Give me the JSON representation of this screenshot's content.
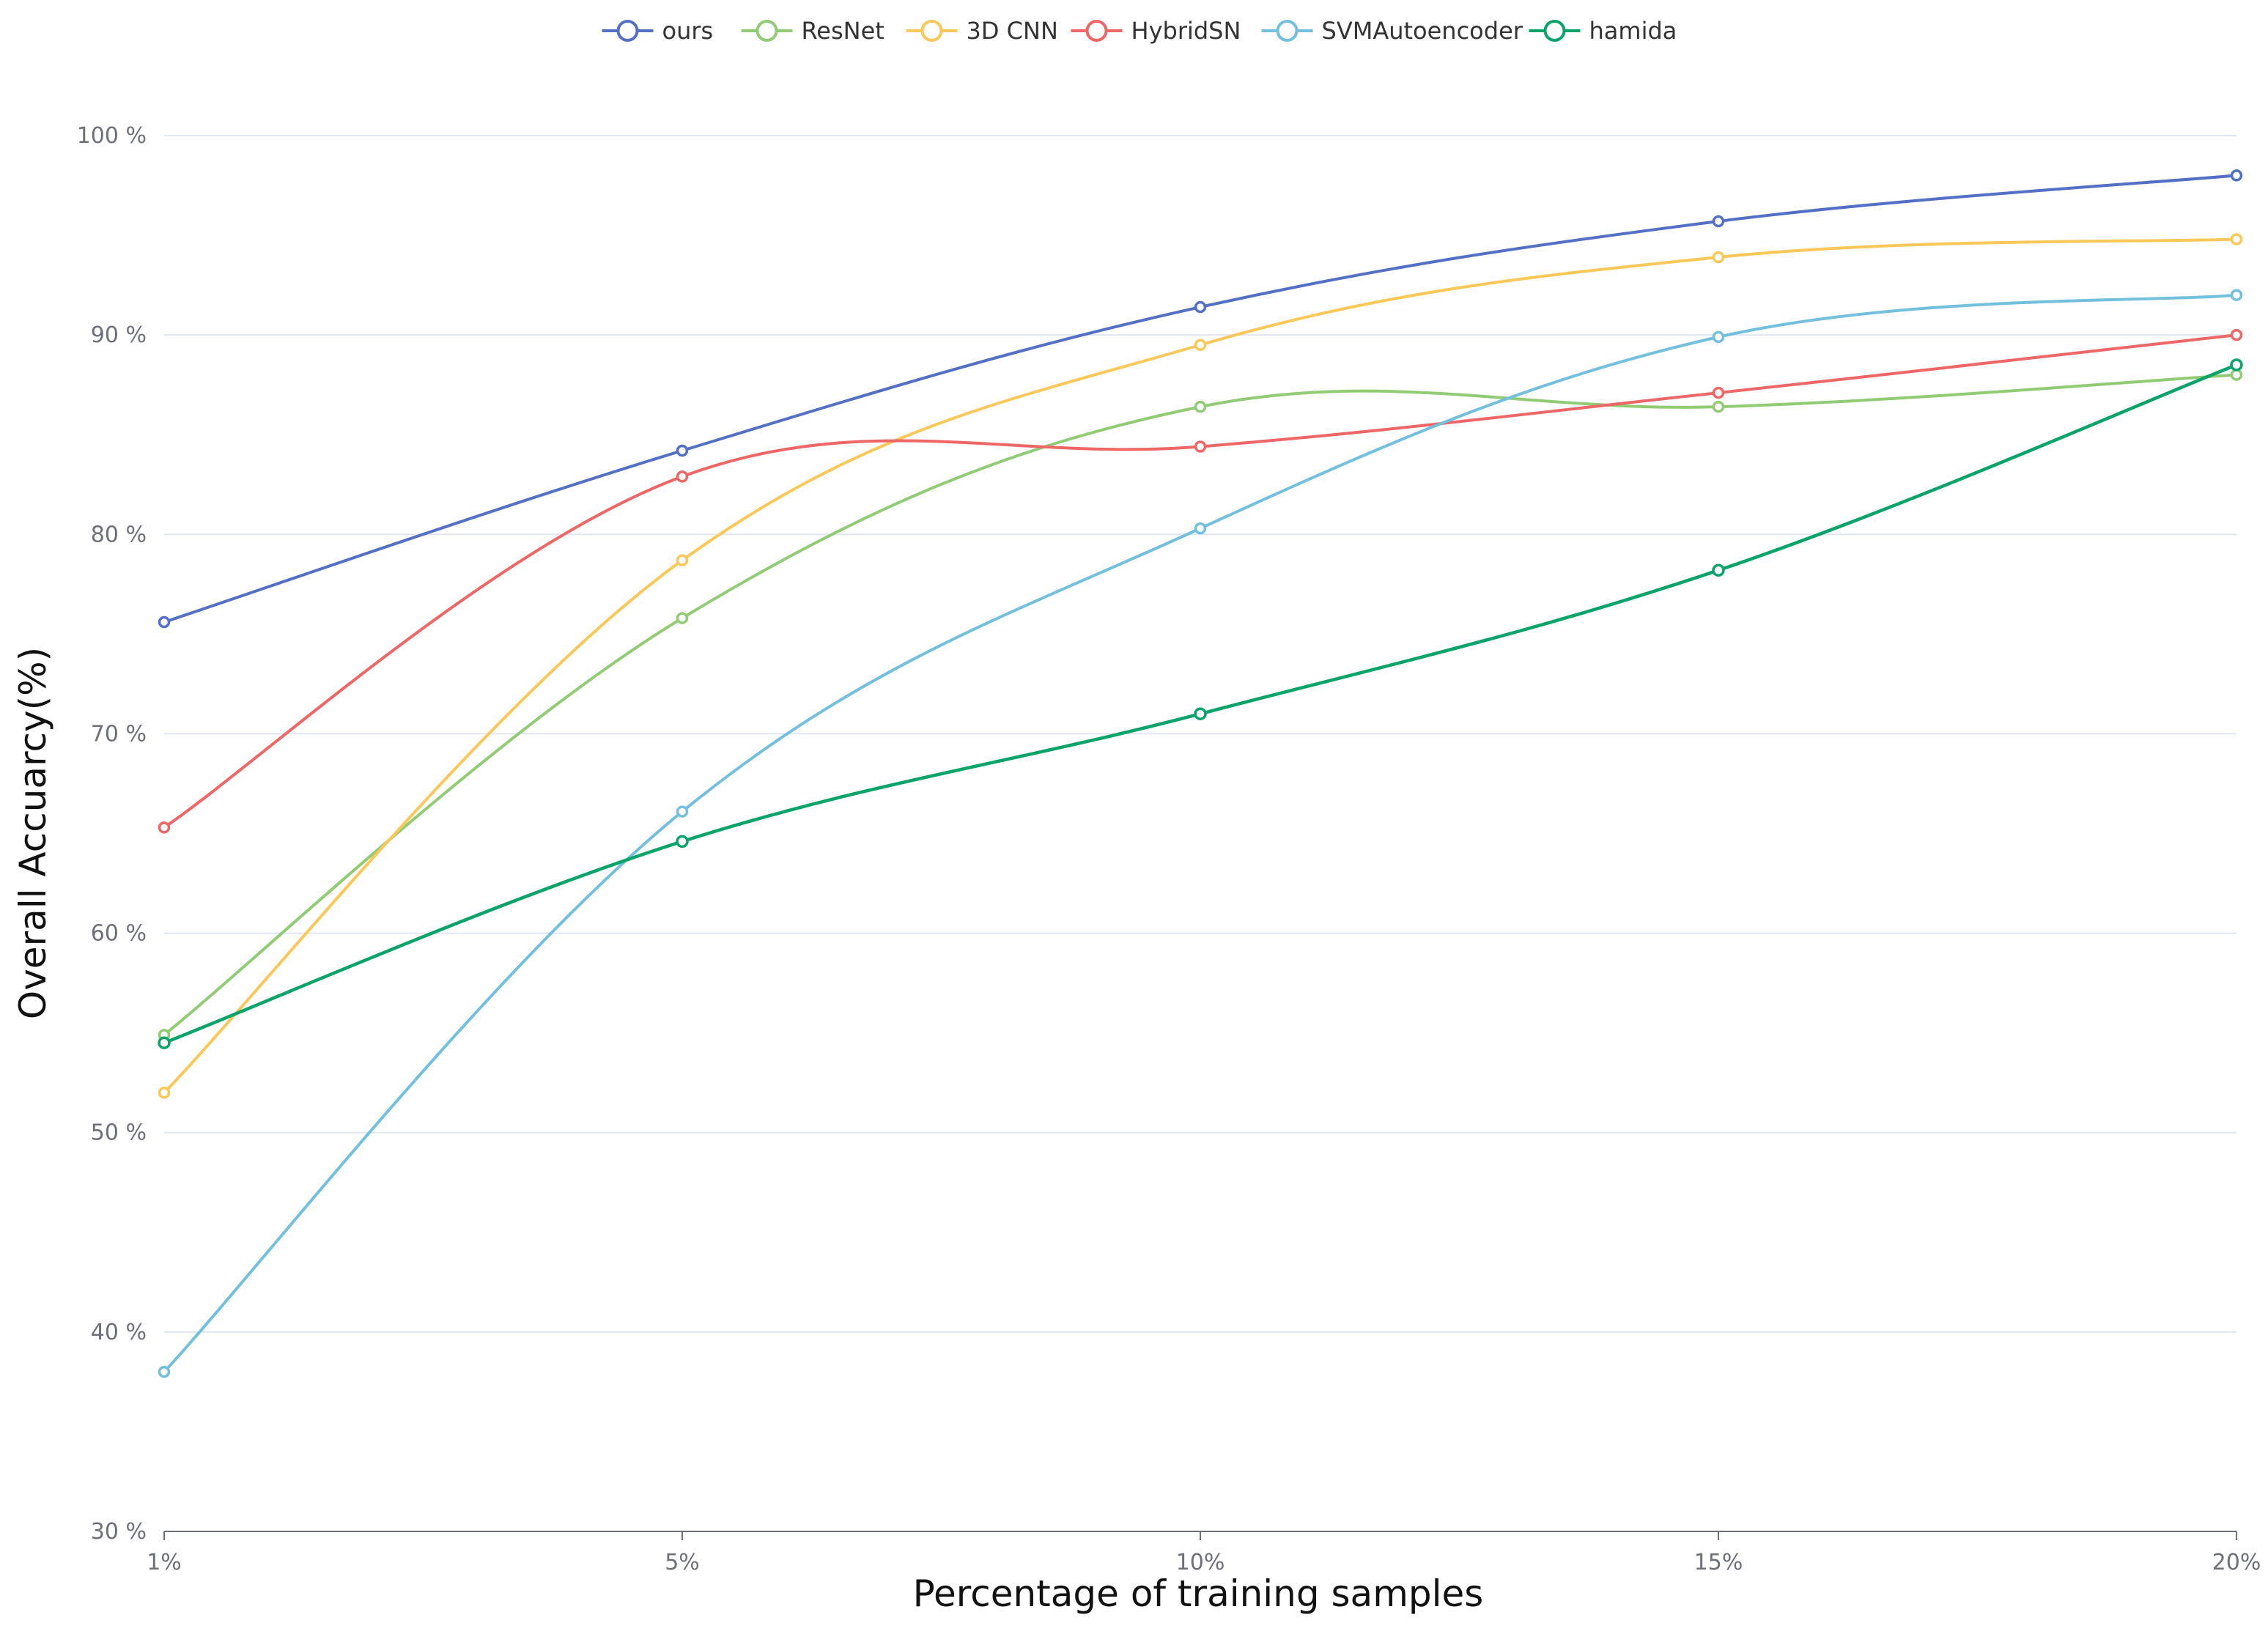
{
  "chart_data": {
    "type": "line",
    "title": "",
    "xlabel": "Percentage of training samples",
    "ylabel": "Overall Accuarcy(%)",
    "categories": [
      "1%",
      "5%",
      "10%",
      "15%",
      "20%"
    ],
    "ylim": [
      30,
      100
    ],
    "yticks": [
      30,
      40,
      50,
      60,
      70,
      80,
      90,
      100
    ],
    "ytick_labels": [
      "30 %",
      "40 %",
      "50 %",
      "60 %",
      "70 %",
      "80 %",
      "90 %",
      "100 %"
    ],
    "grid": true,
    "legend_position": "top-center",
    "series": [
      {
        "name": "ours",
        "color": "#5470c6",
        "values": [
          75.6,
          84.2,
          91.4,
          95.7,
          98.0
        ]
      },
      {
        "name": "ResNet",
        "color": "#91cc75",
        "values": [
          54.9,
          75.8,
          86.4,
          86.4,
          88.0
        ]
      },
      {
        "name": "3D CNN",
        "color": "#fac858",
        "values": [
          52.0,
          78.7,
          89.5,
          93.9,
          94.8
        ]
      },
      {
        "name": "HybridSN",
        "color": "#ee6666",
        "values": [
          65.3,
          82.9,
          84.4,
          87.1,
          90.0
        ]
      },
      {
        "name": "SVMAutoencoder",
        "color": "#73c0de",
        "values": [
          38.0,
          66.1,
          80.3,
          89.9,
          92.0
        ]
      },
      {
        "name": "hamida",
        "color": "#0aa36a",
        "values": [
          54.5,
          64.6,
          71.0,
          78.2,
          88.5
        ]
      }
    ]
  }
}
